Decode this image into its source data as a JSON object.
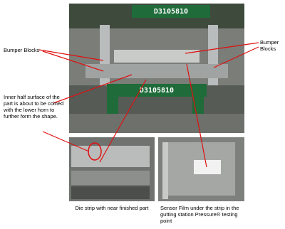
{
  "photo": {
    "signs": [
      "D3105810",
      "D3105810"
    ]
  },
  "annotations": {
    "bumper_left": "Bumper Blocks",
    "bumper_right": "Bumper Blocks",
    "inner_surface": "Inner half surface of the part is about to be coined with the lower horn to further form the shape."
  },
  "captions": [
    "Die strip with near finished part",
    "Sensor Film under the strip in the gutting station Pressure® testing point"
  ]
}
